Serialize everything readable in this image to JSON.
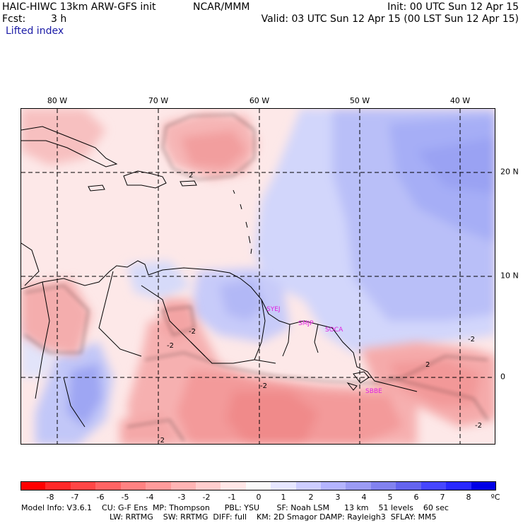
{
  "header": {
    "model_line": "HAIC-HIWC 13km ARW-GFS init",
    "org": "NCAR/MMM",
    "init": "Init: 00 UTC Sun 12 Apr 15",
    "fcst_label": "Fcst:",
    "fcst_value": "3 h",
    "valid": "Valid: 03 UTC Sun 12 Apr 15 (00 LST Sun 12 Apr 15)",
    "field": "Lifted index"
  },
  "map": {
    "lon_labels": [
      "80 W",
      "70 W",
      "60 W",
      "50 W",
      "40 W"
    ],
    "lat_labels": [
      "20 N",
      "10 N",
      "0"
    ],
    "stations": [
      "SYEJ",
      "SMJP",
      "SOCA",
      "SBBE"
    ],
    "contour_labels": [
      "2",
      "-2",
      "-2",
      "2",
      "-2",
      "-2",
      "-2",
      "-2"
    ]
  },
  "colorbar": {
    "labels": [
      "-8",
      "-7",
      "-6",
      "-5",
      "-4",
      "-3",
      "-2",
      "-1",
      "0",
      "1",
      "2",
      "3",
      "4",
      "5",
      "6",
      "7",
      "8"
    ],
    "unit": "ºC",
    "colors": [
      "#ff0000",
      "#ff2828",
      "#ff4646",
      "#ff6464",
      "#ff8282",
      "#ff9b9b",
      "#ffb4b4",
      "#ffcdcd",
      "#ffe6e6",
      "#fafafa",
      "#e6e6ff",
      "#cdcdff",
      "#b4b4ff",
      "#9b9bf5",
      "#8282f0",
      "#6464f0",
      "#4646ff",
      "#2828ff",
      "#0000e6"
    ]
  },
  "footer": {
    "line1": "Model Info: V3.6.1    CU: G-F Ens  MP: Thompson      PBL: YSU       SF: Noah LSM      13 km    51 levels    60 sec",
    "line2": "LW: RRTMG    SW: RRTMG  DIFF: full    KM: 2D Smagor DAMP: Rayleigh3  SFLAY: MM5"
  }
}
